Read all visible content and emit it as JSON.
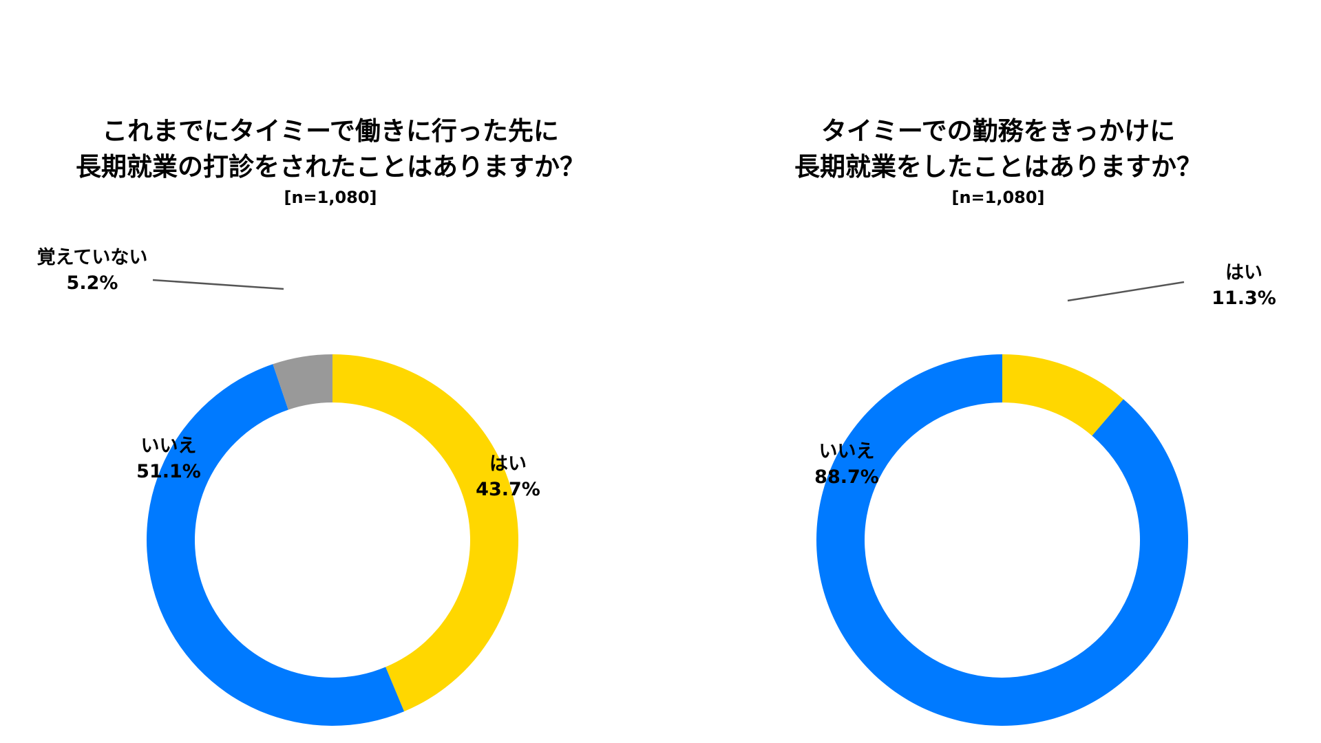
{
  "colors": {
    "yes": "#FFD700",
    "no": "#007AFF",
    "unknown": "#999999",
    "leader": "#555555"
  },
  "chart_data": [
    {
      "type": "pie",
      "variant": "donut",
      "title": "これまでにタイミーで働きに行った先に",
      "title_line2": "長期就業の打診をされたことはありますか？",
      "subtitle": "[n=1,080]",
      "slices": [
        {
          "label": "はい",
          "value": 43.7,
          "display": "43.7%",
          "color_key": "yes"
        },
        {
          "label": "いいえ",
          "value": 51.1,
          "display": "51.1%",
          "color_key": "no"
        },
        {
          "label": "覚えていない",
          "value": 5.2,
          "display": "5.2%",
          "color_key": "unknown"
        }
      ]
    },
    {
      "type": "pie",
      "variant": "donut",
      "title": "タイミーでの勤務をきっかけに",
      "title_line2": "長期就業をしたことはありますか？",
      "subtitle": "[n=1,080]",
      "slices": [
        {
          "label": "はい",
          "value": 11.3,
          "display": "11.3%",
          "color_key": "yes"
        },
        {
          "label": "いいえ",
          "value": 88.7,
          "display": "88.7%",
          "color_key": "no"
        }
      ]
    }
  ]
}
